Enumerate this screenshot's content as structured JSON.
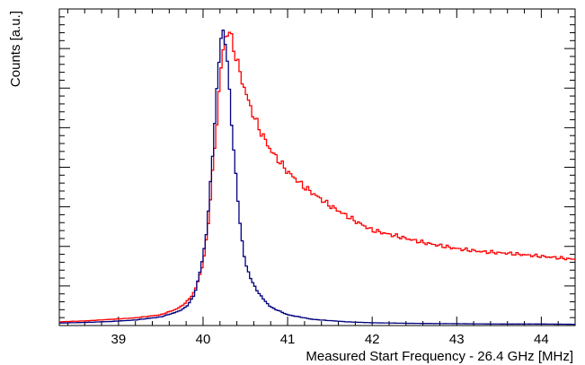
{
  "chart_data": {
    "type": "line",
    "style": "step-histogram",
    "title": "",
    "xlabel": "Measured Start Frequency - 26.4 GHz [MHz]",
    "ylabel": "Counts [a.u.]",
    "xlim": [
      38.3,
      44.4
    ],
    "ylim": [
      0,
      1.0
    ],
    "x_tick_labels": [
      "39",
      "40",
      "41",
      "42",
      "43",
      "44"
    ],
    "y_tick_labels_shown": false,
    "grid": false,
    "legend": "none",
    "series": [
      {
        "color": "#ff0000",
        "points": [
          [
            38.3,
            0.012
          ],
          [
            38.6,
            0.015
          ],
          [
            38.9,
            0.02
          ],
          [
            39.2,
            0.025
          ],
          [
            39.5,
            0.035
          ],
          [
            39.7,
            0.055
          ],
          [
            39.8,
            0.075
          ],
          [
            39.9,
            0.11
          ],
          [
            40.0,
            0.2
          ],
          [
            40.05,
            0.3
          ],
          [
            40.1,
            0.45
          ],
          [
            40.15,
            0.62
          ],
          [
            40.2,
            0.8
          ],
          [
            40.25,
            0.93
          ],
          [
            40.3,
            0.96
          ],
          [
            40.35,
            0.92
          ],
          [
            40.4,
            0.86
          ],
          [
            40.5,
            0.76
          ],
          [
            40.6,
            0.68
          ],
          [
            40.7,
            0.62
          ],
          [
            40.8,
            0.57
          ],
          [
            41.0,
            0.5
          ],
          [
            41.2,
            0.45
          ],
          [
            41.5,
            0.39
          ],
          [
            41.8,
            0.34
          ],
          [
            42.0,
            0.31
          ],
          [
            42.3,
            0.29
          ],
          [
            42.6,
            0.27
          ],
          [
            43.0,
            0.25
          ],
          [
            43.3,
            0.24
          ],
          [
            43.6,
            0.235
          ],
          [
            44.0,
            0.225
          ],
          [
            44.4,
            0.215
          ]
        ]
      },
      {
        "color": "#000080",
        "points": [
          [
            38.3,
            0.008
          ],
          [
            38.6,
            0.01
          ],
          [
            38.9,
            0.013
          ],
          [
            39.2,
            0.018
          ],
          [
            39.5,
            0.028
          ],
          [
            39.7,
            0.045
          ],
          [
            39.8,
            0.06
          ],
          [
            39.9,
            0.1
          ],
          [
            40.0,
            0.22
          ],
          [
            40.05,
            0.33
          ],
          [
            40.1,
            0.5
          ],
          [
            40.15,
            0.72
          ],
          [
            40.2,
            0.9
          ],
          [
            40.23,
            0.97
          ],
          [
            40.27,
            0.92
          ],
          [
            40.3,
            0.8
          ],
          [
            40.35,
            0.62
          ],
          [
            40.4,
            0.44
          ],
          [
            40.45,
            0.3
          ],
          [
            40.5,
            0.2
          ],
          [
            40.6,
            0.13
          ],
          [
            40.7,
            0.09
          ],
          [
            40.8,
            0.06
          ],
          [
            41.0,
            0.035
          ],
          [
            41.3,
            0.02
          ],
          [
            41.7,
            0.012
          ],
          [
            42.0,
            0.009
          ],
          [
            42.5,
            0.007
          ],
          [
            43.0,
            0.006
          ],
          [
            43.5,
            0.005
          ],
          [
            44.0,
            0.005
          ],
          [
            44.4,
            0.004
          ]
        ]
      }
    ]
  }
}
